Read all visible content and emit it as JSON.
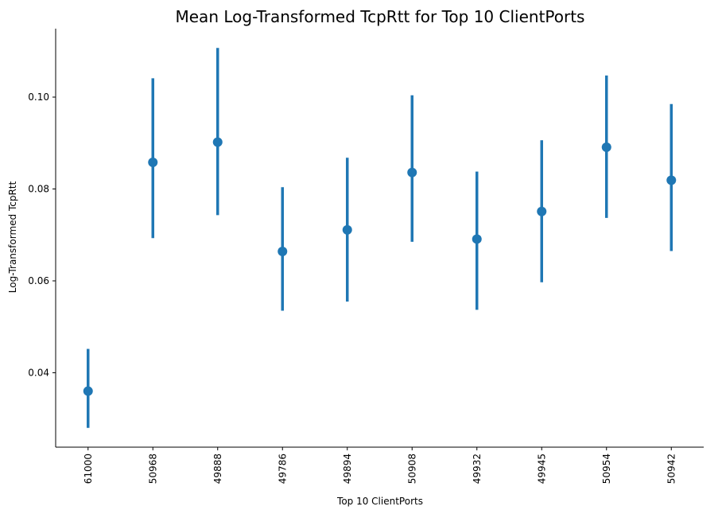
{
  "chart_data": {
    "type": "pointplot",
    "title": "Mean Log-Transformed TcpRtt for Top 10 ClientPorts",
    "xlabel": "Top 10 ClientPorts",
    "ylabel": "Log-Transformed TcpRtt",
    "categories": [
      "61000",
      "50968",
      "49888",
      "49786",
      "49894",
      "50908",
      "49932",
      "49945",
      "50954",
      "50942"
    ],
    "values": [
      0.036,
      0.0858,
      0.0902,
      0.0664,
      0.0711,
      0.0836,
      0.0691,
      0.0751,
      0.0891,
      0.0819
    ],
    "ci_low": [
      0.028,
      0.0693,
      0.0743,
      0.0535,
      0.0555,
      0.0685,
      0.0537,
      0.0597,
      0.0737,
      0.0665
    ],
    "ci_high": [
      0.0452,
      0.1041,
      0.1107,
      0.0804,
      0.0868,
      0.1004,
      0.0838,
      0.0906,
      0.1047,
      0.0985
    ],
    "yticks": [
      0.04,
      0.06,
      0.08,
      0.1
    ],
    "ytick_labels": [
      "0.04",
      "0.06",
      "0.08",
      "0.10"
    ],
    "ylim": [
      0.0238,
      0.1149
    ],
    "color": "#1f77b4",
    "grid": false,
    "legend": "none",
    "xtick_rotation": "vertical"
  }
}
